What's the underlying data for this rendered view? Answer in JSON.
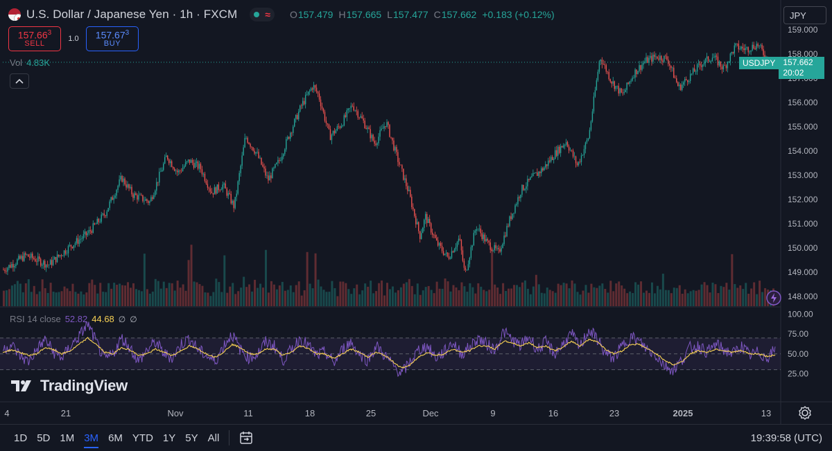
{
  "header": {
    "title": "U.S. Dollar / Japanese Yen · 1h · FXCM",
    "ohlc": [
      {
        "key": "O",
        "value": "157.479"
      },
      {
        "key": "H",
        "value": "157.665"
      },
      {
        "key": "L",
        "value": "157.477"
      },
      {
        "key": "C",
        "value": "157.662"
      }
    ],
    "change": "+0.183 (+0.12%)",
    "currency_button": "JPY"
  },
  "trade": {
    "sell_price_main": "157.66",
    "sell_price_sup": "3",
    "sell_label": "SELL",
    "quantity": "1.0",
    "buy_price_main": "157.67",
    "buy_price_sup": "3",
    "buy_label": "BUY"
  },
  "volume": {
    "label": "Vol",
    "value": "4.83K"
  },
  "price_tag": {
    "symbol": "USDJPY",
    "price": "157.662",
    "countdown": "20:02"
  },
  "rsi": {
    "label": "RSI 14 close",
    "value": "52.82",
    "ma_value": "44.68",
    "extra1": "∅",
    "extra2": "∅"
  },
  "branding": {
    "name": "TradingView"
  },
  "bottom_bar": {
    "ranges": [
      "1D",
      "5D",
      "1M",
      "3M",
      "6M",
      "YTD",
      "1Y",
      "5Y",
      "All"
    ],
    "active_range": "3M",
    "clock": "19:39:58 (UTC)"
  },
  "colors": {
    "background": "#131722",
    "up": "#26a69a",
    "down": "#ef5350",
    "rsi_line": "#7e57c2",
    "rsi_ma": "#f7d154",
    "accent": "#2962ff"
  },
  "chart_data": [
    {
      "type": "candlestick",
      "title": "U.S. Dollar / Japanese Yen · 1h · FXCM",
      "y_ticks": [
        "159.000",
        "158.000",
        "157.000",
        "156.000",
        "155.000",
        "154.000",
        "153.000",
        "152.000",
        "151.000",
        "150.000",
        "149.000",
        "148.000"
      ],
      "ylim": [
        147.6,
        159.2
      ],
      "x_ticks": [
        "4",
        "21",
        "Nov",
        "11",
        "18",
        "25",
        "Dec",
        "9",
        "16",
        "23",
        "2025",
        "13"
      ],
      "grid": false,
      "last_price": 157.662,
      "price_path": [
        [
          0,
          149.1
        ],
        [
          4,
          149.7
        ],
        [
          8,
          149.3
        ],
        [
          12,
          150.1
        ],
        [
          15,
          150.6
        ],
        [
          18,
          151.4
        ],
        [
          21,
          152.9
        ],
        [
          23,
          152.2
        ],
        [
          26,
          151.9
        ],
        [
          29,
          153.8
        ],
        [
          31,
          153.1
        ],
        [
          33,
          153.6
        ],
        [
          35,
          153.3
        ],
        [
          37,
          152.3
        ],
        [
          39,
          152.6
        ],
        [
          41,
          151.7
        ],
        [
          43,
          154.6
        ],
        [
          45,
          153.9
        ],
        [
          47,
          152.8
        ],
        [
          49,
          153.6
        ],
        [
          51,
          154.8
        ],
        [
          53,
          155.9
        ],
        [
          55,
          156.7
        ],
        [
          56,
          156.3
        ],
        [
          58,
          154.6
        ],
        [
          60,
          155.1
        ],
        [
          62,
          155.9
        ],
        [
          64,
          155.2
        ],
        [
          66,
          154.3
        ],
        [
          68,
          155.2
        ],
        [
          70,
          153.7
        ],
        [
          72,
          152.3
        ],
        [
          74,
          150.5
        ],
        [
          75,
          151.3
        ],
        [
          77,
          150.2
        ],
        [
          79,
          149.6
        ],
        [
          81,
          150.4
        ],
        [
          82,
          148.9
        ],
        [
          84,
          150.9
        ],
        [
          86,
          150.2
        ],
        [
          88,
          149.8
        ],
        [
          90,
          151.2
        ],
        [
          92,
          152.4
        ],
        [
          94,
          152.9
        ],
        [
          96,
          153.3
        ],
        [
          98,
          153.9
        ],
        [
          100,
          154.4
        ],
        [
          102,
          153.4
        ],
        [
          104,
          154.6
        ],
        [
          106,
          157.9
        ],
        [
          108,
          156.9
        ],
        [
          110,
          156.3
        ],
        [
          112,
          157.2
        ],
        [
          114,
          157.7
        ],
        [
          116,
          157.9
        ],
        [
          118,
          157.8
        ],
        [
          120,
          156.6
        ],
        [
          122,
          157.1
        ],
        [
          124,
          157.6
        ],
        [
          126,
          157.9
        ],
        [
          128,
          157.4
        ],
        [
          130,
          158.3
        ],
        [
          132,
          158.2
        ],
        [
          134,
          158.4
        ],
        [
          136,
          157.7
        ],
        [
          137,
          157.662
        ]
      ]
    },
    {
      "type": "histogram",
      "title": "Vol",
      "values": [
        0.3,
        0.5,
        0.4,
        0.6,
        0.45,
        0.7,
        0.5,
        0.35,
        0.55,
        1.0,
        0.6,
        0.4,
        0.5,
        0.45,
        0.65,
        0.5,
        0.4,
        0.7,
        0.55,
        0.5,
        0.6,
        0.45,
        0.75,
        0.5,
        0.55,
        0.4,
        0.6,
        0.5,
        0.45,
        0.35,
        0.5,
        0.7,
        0.6,
        0.5,
        0.4,
        0.55,
        0.65,
        0.45,
        0.5,
        0.6,
        0.4,
        0.8,
        0.5,
        0.45,
        0.55,
        0.6
      ]
    },
    {
      "type": "line",
      "title": "RSI 14 close",
      "y_ticks": [
        "100.00",
        "75.00",
        "50.00",
        "25.00"
      ],
      "ylim": [
        0,
        100
      ],
      "bands": [
        30,
        50,
        70
      ],
      "series": [
        {
          "values": [
            55,
            62,
            48,
            40,
            55,
            68,
            52,
            45,
            60,
            72,
            88,
            65,
            42,
            50,
            70,
            58,
            40,
            55,
            65,
            50,
            45,
            62,
            70,
            55,
            48,
            40,
            60,
            75,
            55,
            45,
            50,
            65,
            60,
            42,
            55,
            70,
            60,
            48,
            52,
            38,
            55,
            65,
            50,
            42,
            60,
            48,
            35,
            25,
            40,
            55,
            60,
            45,
            52,
            65,
            50,
            58,
            70,
            62,
            55,
            78,
            68,
            60,
            72,
            55,
            65,
            50,
            62,
            75,
            58,
            80,
            70,
            50,
            45,
            60,
            72,
            65,
            55,
            48,
            35,
            30,
            42,
            58,
            60,
            52,
            62,
            55,
            50,
            60,
            48,
            52,
            45,
            55
          ]
        },
        {
          "values": [
            52,
            55,
            52,
            48,
            50,
            58,
            55,
            50,
            54,
            62,
            70,
            62,
            52,
            50,
            58,
            55,
            48,
            50,
            56,
            52,
            48,
            54,
            60,
            56,
            50,
            46,
            52,
            62,
            58,
            50,
            50,
            56,
            56,
            48,
            52,
            60,
            57,
            50,
            50,
            44,
            50,
            56,
            52,
            46,
            52,
            48,
            40,
            32,
            36,
            46,
            52,
            48,
            50,
            56,
            52,
            54,
            60,
            60,
            56,
            66,
            64,
            60,
            64,
            58,
            60,
            54,
            58,
            66,
            60,
            68,
            66,
            56,
            50,
            54,
            62,
            62,
            56,
            50,
            42,
            36,
            40,
            50,
            54,
            52,
            56,
            54,
            52,
            54,
            50,
            50,
            47,
            48
          ]
        }
      ]
    }
  ]
}
